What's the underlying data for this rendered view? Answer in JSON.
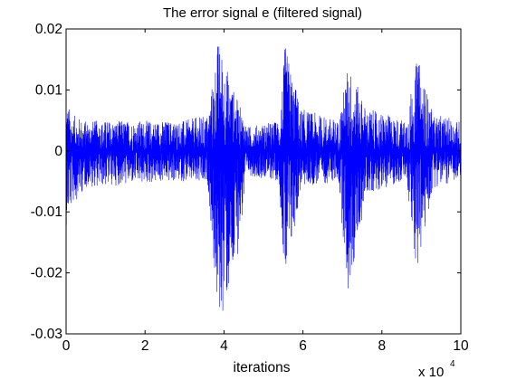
{
  "chart_data": {
    "type": "line",
    "title": "The error signal e (filtered signal)",
    "xlabel": "iterations",
    "ylabel": "",
    "x_exponent_base": "x 10",
    "x_exponent_power": "4",
    "xlim": [
      0,
      10
    ],
    "ylim": [
      -0.03,
      0.02
    ],
    "x_ticks": [
      0,
      2,
      4,
      6,
      8,
      10
    ],
    "x_tick_labels": [
      "0",
      "2",
      "4",
      "6",
      "8",
      "10"
    ],
    "y_ticks": [
      -0.03,
      -0.02,
      -0.01,
      0,
      0.01,
      0.02
    ],
    "y_tick_labels": [
      "-0.03",
      "-0.02",
      "-0.01",
      "0",
      "0.01",
      "0.02"
    ],
    "grid": false,
    "legend": "none",
    "series": [
      {
        "color": "#0000ff",
        "noise_floor": {
          "x_range": [
            0,
            10
          ],
          "amplitude": [
            -0.005,
            0.005
          ]
        },
        "envelope": [
          {
            "x": 0.0,
            "upper": 0.0085,
            "lower": -0.0125
          },
          {
            "x": 0.15,
            "upper": 0.006,
            "lower": -0.009
          },
          {
            "x": 0.5,
            "upper": 0.005,
            "lower": -0.006
          },
          {
            "x": 3.0,
            "upper": 0.005,
            "lower": -0.005
          },
          {
            "x": 3.6,
            "upper": 0.006,
            "lower": -0.006
          },
          {
            "x": 3.85,
            "upper": 0.0185,
            "lower": -0.029
          },
          {
            "x": 4.25,
            "upper": 0.01,
            "lower": -0.022
          },
          {
            "x": 4.6,
            "upper": 0.004,
            "lower": -0.004
          },
          {
            "x": 5.4,
            "upper": 0.005,
            "lower": -0.005
          },
          {
            "x": 5.55,
            "upper": 0.0175,
            "lower": -0.024
          },
          {
            "x": 5.95,
            "upper": 0.007,
            "lower": -0.006
          },
          {
            "x": 6.9,
            "upper": 0.005,
            "lower": -0.005
          },
          {
            "x": 7.15,
            "upper": 0.0145,
            "lower": -0.0245
          },
          {
            "x": 7.6,
            "upper": 0.007,
            "lower": -0.007
          },
          {
            "x": 8.6,
            "upper": 0.005,
            "lower": -0.005
          },
          {
            "x": 8.9,
            "upper": 0.0155,
            "lower": -0.0205
          },
          {
            "x": 9.3,
            "upper": 0.006,
            "lower": -0.006
          },
          {
            "x": 10.0,
            "upper": 0.005,
            "lower": -0.005
          }
        ]
      }
    ]
  }
}
